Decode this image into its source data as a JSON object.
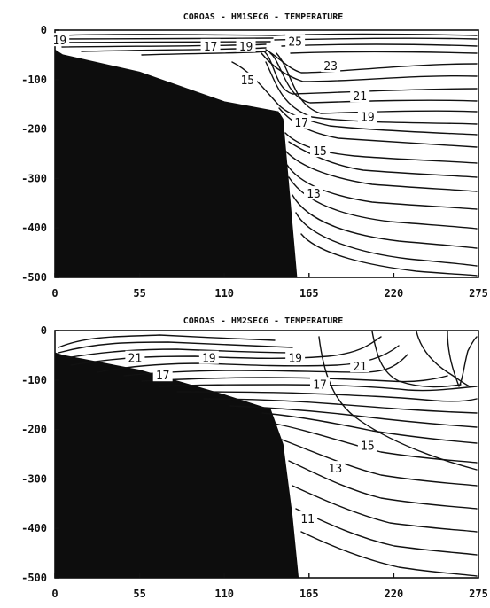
{
  "chart_data": [
    {
      "type": "contour",
      "title": "COROAS - HM1SEC6 - TEMPERATURE",
      "xlabel": "",
      "ylabel": "",
      "xlim": [
        0,
        275
      ],
      "ylim": [
        -500,
        0
      ],
      "x_ticks": [
        "0",
        "55",
        "110",
        "165",
        "220",
        "275"
      ],
      "y_ticks": [
        "0",
        "-100",
        "-200",
        "-300",
        "-400",
        "-500"
      ],
      "bathymetry": {
        "x": [
          0,
          5,
          55,
          110,
          145,
          148,
          157
        ],
        "depth": [
          -40,
          -50,
          -85,
          -145,
          -165,
          -180,
          -500
        ]
      },
      "contour_labels": [
        {
          "value": "19",
          "x": 3,
          "y": -20
        },
        {
          "value": "17",
          "x": 101,
          "y": -32
        },
        {
          "value": "19",
          "x": 124,
          "y": -32
        },
        {
          "value": "25",
          "x": 156,
          "y": -22
        },
        {
          "value": "23",
          "x": 179,
          "y": -72
        },
        {
          "value": "15",
          "x": 125,
          "y": -100
        },
        {
          "value": "21",
          "x": 198,
          "y": -133
        },
        {
          "value": "17",
          "x": 160,
          "y": -186
        },
        {
          "value": "19",
          "x": 203,
          "y": -175
        },
        {
          "value": "15",
          "x": 172,
          "y": -244
        },
        {
          "value": "13",
          "x": 168,
          "y": -330
        }
      ],
      "grid": false
    },
    {
      "type": "contour",
      "title": "COROAS - HM2SEC6 - TEMPERATURE",
      "xlabel": "",
      "ylabel": "",
      "xlim": [
        0,
        275
      ],
      "ylim": [
        -500,
        0
      ],
      "x_ticks": [
        "0",
        "55",
        "110",
        "165",
        "220",
        "275"
      ],
      "y_ticks": [
        "0",
        "-100",
        "-200",
        "-300",
        "-400",
        "-500"
      ],
      "bathymetry": {
        "x": [
          0,
          5,
          55,
          110,
          140,
          148,
          154,
          158
        ],
        "depth": [
          -45,
          -50,
          -80,
          -130,
          -160,
          -230,
          -375,
          -500
        ]
      },
      "contour_labels": [
        {
          "value": "21",
          "x": 52,
          "y": -55
        },
        {
          "value": "17",
          "x": 70,
          "y": -90
        },
        {
          "value": "19",
          "x": 100,
          "y": -55
        },
        {
          "value": "19",
          "x": 156,
          "y": -55
        },
        {
          "value": "21",
          "x": 198,
          "y": -72
        },
        {
          "value": "17",
          "x": 172,
          "y": -108
        },
        {
          "value": "15",
          "x": 203,
          "y": -232
        },
        {
          "value": "13",
          "x": 182,
          "y": -278
        },
        {
          "value": "11",
          "x": 164,
          "y": -380
        }
      ],
      "grid": false
    }
  ]
}
